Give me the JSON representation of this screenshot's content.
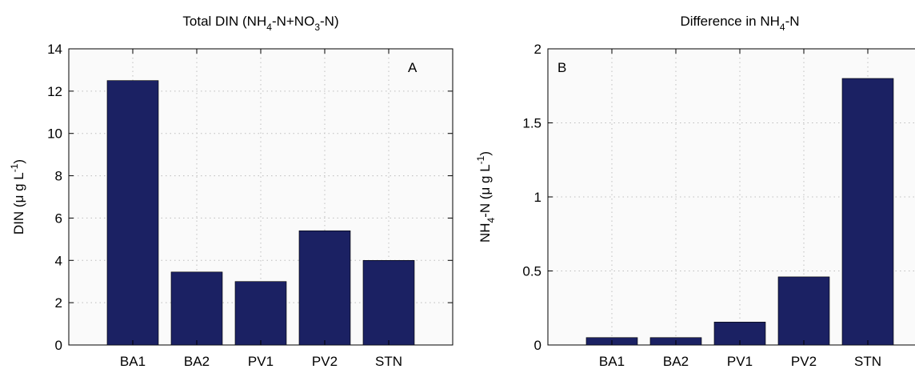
{
  "chart_data": [
    {
      "type": "bar",
      "title_parts": [
        "Total DIN (NH",
        "4",
        "-N+NO",
        "3",
        "-N)"
      ],
      "panel_label": "A",
      "ylabel_parts": [
        "DIN (",
        "μ",
        " g L",
        "-1",
        ")"
      ],
      "categories": [
        "BA1",
        "BA2",
        "PV1",
        "PV2",
        "STN"
      ],
      "values": [
        12.5,
        3.45,
        3.0,
        5.4,
        4.0
      ],
      "ylim": [
        0,
        14
      ],
      "yticks": [
        "0",
        "2",
        "4",
        "6",
        "8",
        "10",
        "12",
        "14"
      ],
      "grid": true,
      "bar_color": "#1b2163"
    },
    {
      "type": "bar",
      "title_parts": [
        "Difference in NH",
        "4",
        "-N"
      ],
      "panel_label": "B",
      "ylabel_parts": [
        "NH",
        "4",
        "-N (",
        "μ",
        " g L",
        "-1",
        ")"
      ],
      "categories": [
        "BA1",
        "BA2",
        "PV1",
        "PV2",
        "STN"
      ],
      "values": [
        0.05,
        0.05,
        0.155,
        0.46,
        1.8
      ],
      "ylim": [
        0,
        2
      ],
      "yticks": [
        "0",
        "0.5",
        "1",
        "1.5",
        "2"
      ],
      "grid": true,
      "bar_color": "#1b2163"
    }
  ]
}
